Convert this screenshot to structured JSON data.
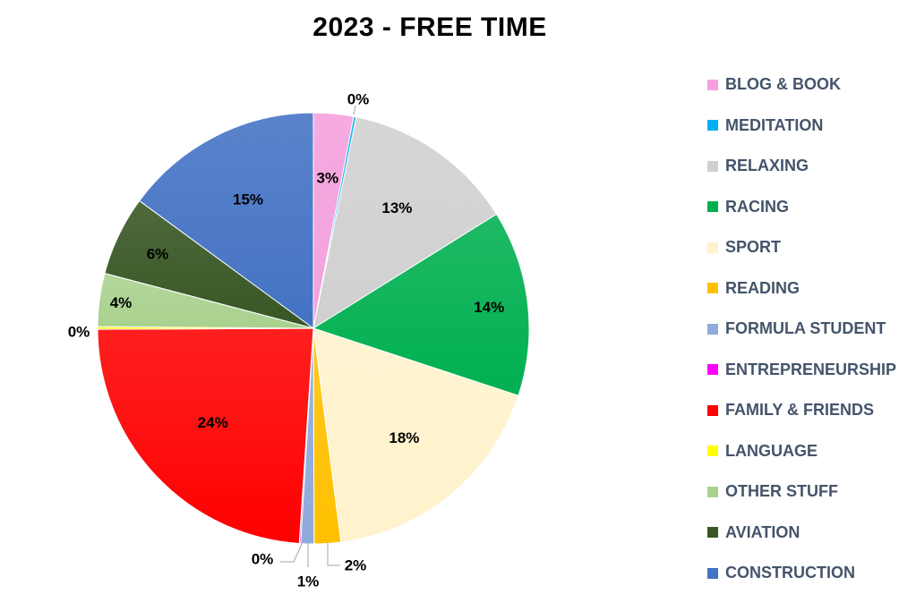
{
  "chart_data": {
    "type": "pie",
    "title": "2023 - FREE TIME",
    "legend_position": "right",
    "slices": [
      {
        "name": "BLOG & BOOK",
        "value": 3,
        "label": "3%",
        "color": "#f4a0dc"
      },
      {
        "name": "MEDITATION",
        "value": 0.2,
        "label": "0%",
        "color": "#00b0f0"
      },
      {
        "name": "RELAXING",
        "value": 13,
        "label": "13%",
        "color": "#d0d0d0"
      },
      {
        "name": "RACING",
        "value": 14,
        "label": "14%",
        "color": "#00b050"
      },
      {
        "name": "SPORT",
        "value": 18,
        "label": "18%",
        "color": "#fff2cc"
      },
      {
        "name": "READING",
        "value": 2,
        "label": "2%",
        "color": "#ffc000"
      },
      {
        "name": "FORMULA STUDENT",
        "value": 1,
        "label": "1%",
        "color": "#8faadc"
      },
      {
        "name": "ENTREPRENEURSHIP",
        "value": 0.1,
        "label": "0%",
        "color": "#ff00ff"
      },
      {
        "name": "FAMILY & FRIENDS",
        "value": 24,
        "label": "24%",
        "color": "#ff0000"
      },
      {
        "name": "LANGUAGE",
        "value": 0.2,
        "label": "0%",
        "color": "#ffff00"
      },
      {
        "name": "OTHER STUFF",
        "value": 4,
        "label": "4%",
        "color": "#a9d18e"
      },
      {
        "name": "AVIATION",
        "value": 6,
        "label": "6%",
        "color": "#375623"
      },
      {
        "name": "CONSTRUCTION",
        "value": 15,
        "label": "15%",
        "color": "#4472c4"
      }
    ]
  }
}
